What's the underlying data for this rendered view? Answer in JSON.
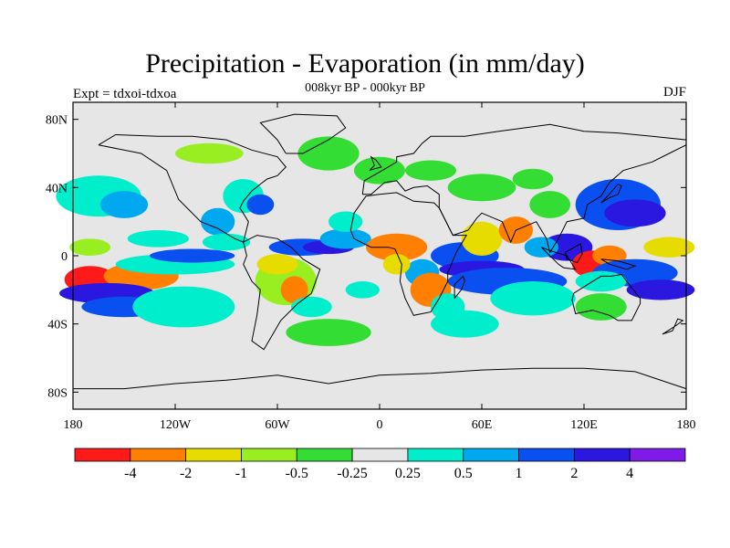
{
  "header": {
    "title": "Precipitation - Evaporation (in mm/day)",
    "subtitle": "008kyr BP - 000kyr BP",
    "left_label": "Expt = tdxoi-tdxoa",
    "right_label": "DJF"
  },
  "map": {
    "y_ticks": [
      {
        "lat": 80,
        "label": "80N"
      },
      {
        "lat": 40,
        "label": "40N"
      },
      {
        "lat": 0,
        "label": "0"
      },
      {
        "lat": -40,
        "label": "40S"
      },
      {
        "lat": -80,
        "label": "80S"
      }
    ],
    "x_ticks": [
      {
        "lon": -180,
        "label": "180"
      },
      {
        "lon": -120,
        "label": "120W"
      },
      {
        "lon": -60,
        "label": "60W"
      },
      {
        "lon": 0,
        "label": "0"
      },
      {
        "lon": 60,
        "label": "60E"
      },
      {
        "lon": 120,
        "label": "120E"
      },
      {
        "lon": 180,
        "label": "180"
      }
    ],
    "background_color": "#e6e6e6"
  },
  "colorbar": {
    "colors": [
      "#ff1a1a",
      "#ff8000",
      "#e6dc00",
      "#99ee22",
      "#33dd33",
      "#e6e6e6",
      "#00eecc",
      "#00a8f0",
      "#0a50f0",
      "#2a18e0",
      "#7f1ae8"
    ],
    "labels": [
      "-4",
      "-2",
      "-1",
      "-0.5",
      "-0.25",
      "0.25",
      "0.5",
      "1",
      "2",
      "4"
    ]
  },
  "chart_data": {
    "type": "heatmap",
    "title": "Precipitation - Evaporation (in mm/day)",
    "subtitle": "008kyr BP - 000kyr BP",
    "x_range": [
      -180,
      180
    ],
    "y_range": [
      -90,
      90
    ],
    "levels": [
      -4,
      -2,
      -1,
      -0.5,
      -0.25,
      0.25,
      0.5,
      1,
      2,
      4
    ]
  }
}
